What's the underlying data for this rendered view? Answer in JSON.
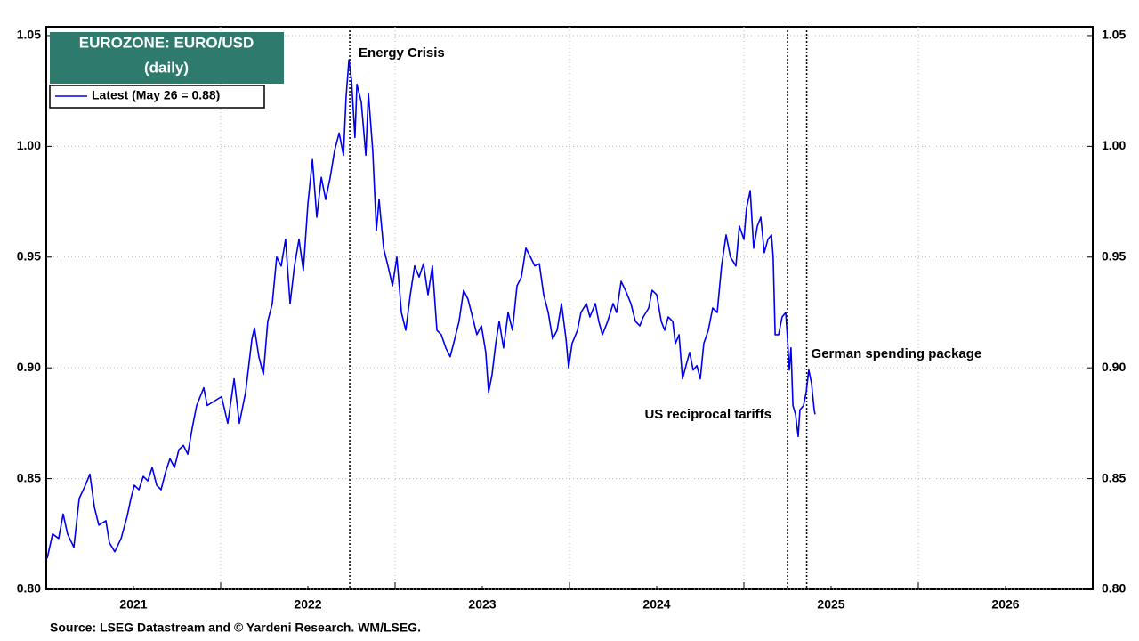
{
  "chart_data": {
    "type": "line",
    "title": "EUROZONE: EURO/USD",
    "subtitle": "(daily)",
    "source": "Source: LSEG Datastream and © Yardeni Research. WM/LSEG.",
    "series": [
      {
        "name": "Latest (May 26 = 0.88)",
        "color": "#0000ee",
        "x": [
          2021.005,
          2021.036,
          2021.071,
          2021.097,
          2021.122,
          2021.158,
          2021.189,
          2021.224,
          2021.25,
          2021.276,
          2021.301,
          2021.342,
          2021.362,
          2021.393,
          2021.429,
          2021.464,
          2021.485,
          2021.505,
          2021.531,
          2021.556,
          2021.582,
          2021.607,
          2021.633,
          2021.658,
          2021.684,
          2021.709,
          2021.735,
          2021.76,
          2021.786,
          2021.811,
          2021.837,
          2021.862,
          2021.903,
          2021.923,
          2021.964,
          2022.005,
          2022.041,
          2022.077,
          2022.107,
          2022.143,
          2022.179,
          2022.194,
          2022.219,
          2022.245,
          2022.27,
          2022.296,
          2022.321,
          2022.347,
          2022.372,
          2022.398,
          2022.423,
          2022.449,
          2022.474,
          2022.5,
          2022.526,
          2022.551,
          2022.577,
          2022.602,
          2022.628,
          2022.653,
          2022.679,
          2022.704,
          2022.719,
          2022.735,
          2022.75,
          2022.77,
          2022.781,
          2022.806,
          2022.832,
          2022.847,
          2022.872,
          2022.893,
          2022.908,
          2022.934,
          2022.959,
          2022.985,
          2023.01,
          2023.036,
          2023.061,
          2023.087,
          2023.112,
          2023.138,
          2023.163,
          2023.189,
          2023.214,
          2023.24,
          2023.265,
          2023.291,
          2023.316,
          2023.342,
          2023.367,
          2023.393,
          2023.418,
          2023.444,
          2023.469,
          2023.495,
          2023.52,
          2023.536,
          2023.556,
          2023.577,
          2023.597,
          2023.622,
          2023.648,
          2023.673,
          2023.699,
          2023.724,
          2023.75,
          2023.776,
          2023.801,
          2023.827,
          2023.852,
          2023.878,
          2023.903,
          2023.929,
          2023.954,
          2023.98,
          2023.995,
          2024.015,
          2024.046,
          2024.066,
          2024.097,
          2024.117,
          2024.148,
          2024.168,
          2024.189,
          2024.219,
          2024.25,
          2024.27,
          2024.296,
          2024.321,
          2024.352,
          2024.378,
          2024.403,
          2024.423,
          2024.454,
          2024.474,
          2024.5,
          2024.526,
          2024.546,
          2024.566,
          2024.592,
          2024.607,
          2024.628,
          2024.648,
          2024.668,
          2024.689,
          2024.709,
          2024.73,
          2024.75,
          2024.77,
          2024.796,
          2024.821,
          2024.847,
          2024.872,
          2024.898,
          2024.923,
          2024.954,
          2024.974,
          2025.0,
          2025.015,
          2025.036,
          2025.056,
          2025.077,
          2025.097,
          2025.117,
          2025.138,
          2025.158,
          2025.168,
          2025.179,
          2025.199,
          2025.219,
          2025.24,
          2025.25,
          2025.26,
          2025.27,
          2025.281,
          2025.296,
          2025.311,
          2025.321,
          2025.342,
          2025.357,
          2025.372,
          2025.388,
          2025.403,
          2025.408
        ],
        "values": [
          0.814,
          0.825,
          0.823,
          0.834,
          0.825,
          0.819,
          0.841,
          0.847,
          0.852,
          0.837,
          0.829,
          0.831,
          0.821,
          0.817,
          0.823,
          0.833,
          0.841,
          0.847,
          0.845,
          0.851,
          0.849,
          0.855,
          0.847,
          0.845,
          0.853,
          0.859,
          0.855,
          0.863,
          0.865,
          0.861,
          0.873,
          0.883,
          0.891,
          0.883,
          0.885,
          0.887,
          0.875,
          0.895,
          0.875,
          0.889,
          0.913,
          0.918,
          0.905,
          0.897,
          0.921,
          0.929,
          0.95,
          0.946,
          0.958,
          0.929,
          0.946,
          0.958,
          0.944,
          0.974,
          0.994,
          0.968,
          0.986,
          0.976,
          0.986,
          0.998,
          1.006,
          0.996,
          1.022,
          1.039,
          1.03,
          1.004,
          1.028,
          1.02,
          0.996,
          1.024,
          0.998,
          0.962,
          0.976,
          0.954,
          0.946,
          0.937,
          0.95,
          0.925,
          0.917,
          0.933,
          0.946,
          0.941,
          0.947,
          0.933,
          0.946,
          0.917,
          0.915,
          0.909,
          0.905,
          0.913,
          0.921,
          0.935,
          0.931,
          0.923,
          0.915,
          0.919,
          0.907,
          0.889,
          0.897,
          0.911,
          0.921,
          0.909,
          0.925,
          0.917,
          0.937,
          0.941,
          0.954,
          0.95,
          0.946,
          0.947,
          0.933,
          0.925,
          0.913,
          0.917,
          0.929,
          0.913,
          0.9,
          0.911,
          0.917,
          0.925,
          0.929,
          0.923,
          0.929,
          0.921,
          0.915,
          0.921,
          0.929,
          0.925,
          0.939,
          0.935,
          0.929,
          0.921,
          0.919,
          0.923,
          0.927,
          0.935,
          0.933,
          0.921,
          0.917,
          0.923,
          0.921,
          0.911,
          0.915,
          0.895,
          0.901,
          0.907,
          0.899,
          0.901,
          0.895,
          0.911,
          0.917,
          0.927,
          0.925,
          0.946,
          0.96,
          0.95,
          0.946,
          0.964,
          0.958,
          0.972,
          0.98,
          0.954,
          0.964,
          0.968,
          0.952,
          0.958,
          0.96,
          0.95,
          0.915,
          0.915,
          0.923,
          0.925,
          0.913,
          0.899,
          0.909,
          0.883,
          0.879,
          0.869,
          0.881,
          0.883,
          0.889,
          0.899,
          0.893,
          0.881,
          0.879
        ]
      }
    ],
    "events": [
      {
        "x": 2022.74,
        "label": "Energy Crisis"
      },
      {
        "x": 2025.25,
        "label": "US reciprocal tariffs"
      },
      {
        "x": 2025.36,
        "label": "German spending package"
      }
    ],
    "xlim": [
      2021,
      2027
    ],
    "xticks": [
      {
        "value": 2021.5,
        "label": "2021"
      },
      {
        "value": 2022.5,
        "label": "2022"
      },
      {
        "value": 2023.5,
        "label": "2023"
      },
      {
        "value": 2024.5,
        "label": "2024"
      },
      {
        "value": 2025.5,
        "label": "2025"
      },
      {
        "value": 2026.5,
        "label": "2026"
      }
    ],
    "xgrid": [
      2022,
      2023,
      2024,
      2025,
      2026
    ],
    "ylim": [
      0.8,
      1.054
    ],
    "yticks": [
      {
        "value": 0.8,
        "label": "0.80"
      },
      {
        "value": 0.85,
        "label": "0.85"
      },
      {
        "value": 0.9,
        "label": "0.90"
      },
      {
        "value": 0.95,
        "label": "0.95"
      },
      {
        "value": 1.0,
        "label": "1.00"
      },
      {
        "value": 1.05,
        "label": "1.05"
      }
    ],
    "grid": true
  }
}
